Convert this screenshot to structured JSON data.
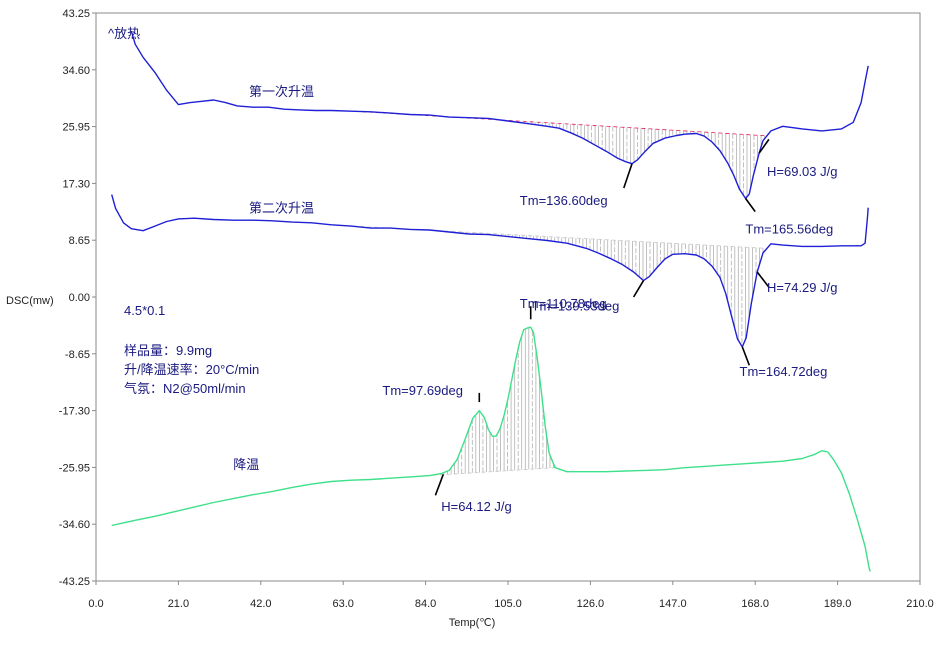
{
  "chart_data": {
    "type": "line",
    "xlabel": "Temp(℃)",
    "ylabel": "DSC(mw)",
    "xlim": [
      0.0,
      210.0
    ],
    "ylim": [
      -43.25,
      43.25
    ],
    "xticks": [
      "0.0",
      "21.0",
      "42.0",
      "63.0",
      "84.0",
      "105.0",
      "126.0",
      "147.0",
      "168.0",
      "189.0",
      "210.0"
    ],
    "yticks": [
      "43.25",
      "34.60",
      "25.95",
      "17.30",
      "8.65",
      "0.00",
      "-8.65",
      "-17.30",
      "-25.95",
      "-34.60",
      "-43.25"
    ],
    "grid": false,
    "colors": {
      "heating": "#1f1fd6",
      "cooling": "#3ee08a",
      "annotation_text": "#1a1a80",
      "hatch": "#b0b0b0",
      "baseline_dash": "#e0205a"
    },
    "exo_label": "^放热",
    "notes": [
      "4.5*0.1",
      "样品量：9.9mg",
      "升/降温速率：20°C/min",
      "气氛：N2@50ml/min"
    ],
    "series": [
      {
        "name": "第一次升温",
        "color": "#1f1fd6",
        "points": [
          [
            9,
            40.5
          ],
          [
            10,
            38.5
          ],
          [
            12,
            36.5
          ],
          [
            15,
            34.2
          ],
          [
            18,
            31.5
          ],
          [
            21,
            29.3
          ],
          [
            24,
            29.6
          ],
          [
            27,
            29.8
          ],
          [
            30,
            30.0
          ],
          [
            33,
            29.6
          ],
          [
            36,
            29.1
          ],
          [
            40,
            28.9
          ],
          [
            44,
            28.9
          ],
          [
            48,
            28.6
          ],
          [
            52,
            28.5
          ],
          [
            56,
            28.4
          ],
          [
            60,
            28.4
          ],
          [
            65,
            28.3
          ],
          [
            70,
            28.2
          ],
          [
            75,
            28.0
          ],
          [
            80,
            27.8
          ],
          [
            85,
            27.7
          ],
          [
            90,
            27.4
          ],
          [
            95,
            27.3
          ],
          [
            100,
            27.2
          ],
          [
            105,
            26.8
          ],
          [
            110,
            26.4
          ],
          [
            115,
            26.0
          ],
          [
            118,
            25.7
          ],
          [
            121,
            25.0
          ],
          [
            124,
            24.2
          ],
          [
            127,
            23.2
          ],
          [
            130,
            22.2
          ],
          [
            133,
            21.1
          ],
          [
            135,
            20.6
          ],
          [
            136.6,
            20.3
          ],
          [
            138,
            20.9
          ],
          [
            140,
            22.2
          ],
          [
            142,
            23.4
          ],
          [
            145,
            24.2
          ],
          [
            148,
            24.6
          ],
          [
            150,
            24.8
          ],
          [
            153,
            24.9
          ],
          [
            155,
            24.5
          ],
          [
            157,
            23.6
          ],
          [
            159,
            22.3
          ],
          [
            161,
            20.4
          ],
          [
            162.5,
            18.6
          ],
          [
            164,
            16.4
          ],
          [
            165.56,
            15.0
          ],
          [
            166.5,
            15.7
          ],
          [
            167.5,
            18.4
          ],
          [
            169,
            21.9
          ],
          [
            170,
            23.8
          ],
          [
            172,
            25.3
          ],
          [
            175,
            26.0
          ],
          [
            180,
            25.6
          ],
          [
            185,
            25.3
          ],
          [
            190,
            25.6
          ],
          [
            193,
            26.6
          ],
          [
            195,
            29.6
          ],
          [
            196,
            32.8
          ],
          [
            196.8,
            35.2
          ]
        ]
      },
      {
        "name": "第二次升温",
        "color": "#1f1fd6",
        "points": [
          [
            4,
            15.6
          ],
          [
            5,
            13.5
          ],
          [
            7,
            11.3
          ],
          [
            9,
            10.4
          ],
          [
            12,
            10.1
          ],
          [
            15,
            10.8
          ],
          [
            18,
            11.5
          ],
          [
            21,
            11.9
          ],
          [
            25,
            12.0
          ],
          [
            30,
            11.8
          ],
          [
            35,
            11.7
          ],
          [
            40,
            11.7
          ],
          [
            45,
            11.6
          ],
          [
            50,
            11.4
          ],
          [
            55,
            11.3
          ],
          [
            60,
            11.0
          ],
          [
            65,
            10.8
          ],
          [
            70,
            10.5
          ],
          [
            75,
            10.5
          ],
          [
            80,
            10.3
          ],
          [
            85,
            10.2
          ],
          [
            90,
            9.9
          ],
          [
            95,
            9.6
          ],
          [
            100,
            9.5
          ],
          [
            105,
            9.2
          ],
          [
            110,
            8.9
          ],
          [
            115,
            8.6
          ],
          [
            120,
            8.2
          ],
          [
            125,
            7.4
          ],
          [
            128,
            6.7
          ],
          [
            131,
            5.9
          ],
          [
            134,
            5.0
          ],
          [
            137,
            3.8
          ],
          [
            139.53,
            2.5
          ],
          [
            141,
            3.1
          ],
          [
            143,
            4.5
          ],
          [
            145,
            5.8
          ],
          [
            147,
            6.5
          ],
          [
            150,
            6.6
          ],
          [
            153,
            6.4
          ],
          [
            155,
            5.8
          ],
          [
            157,
            4.7
          ],
          [
            159,
            3.0
          ],
          [
            160.5,
            0.5
          ],
          [
            162,
            -3.0
          ],
          [
            163.5,
            -6.4
          ],
          [
            164.72,
            -7.6
          ],
          [
            165.7,
            -6.2
          ],
          [
            167,
            -1.0
          ],
          [
            168.5,
            3.8
          ],
          [
            170,
            6.7
          ],
          [
            172,
            8.1
          ],
          [
            175,
            7.9
          ],
          [
            180,
            7.7
          ],
          [
            185,
            7.7
          ],
          [
            190,
            7.8
          ],
          [
            195,
            7.8
          ],
          [
            196,
            8.2
          ],
          [
            196.6,
            12.0
          ],
          [
            196.8,
            13.6
          ]
        ]
      },
      {
        "name": "降温",
        "color": "#3ee08a",
        "points": [
          [
            4,
            -34.8
          ],
          [
            10,
            -34.0
          ],
          [
            15,
            -33.4
          ],
          [
            20,
            -32.7
          ],
          [
            25,
            -32.0
          ],
          [
            30,
            -31.3
          ],
          [
            35,
            -30.7
          ],
          [
            40,
            -30.1
          ],
          [
            45,
            -29.6
          ],
          [
            50,
            -29.0
          ],
          [
            55,
            -28.5
          ],
          [
            60,
            -28.1
          ],
          [
            65,
            -27.9
          ],
          [
            70,
            -27.8
          ],
          [
            75,
            -27.6
          ],
          [
            80,
            -27.4
          ],
          [
            85,
            -27.2
          ],
          [
            88,
            -26.9
          ],
          [
            90,
            -26.4
          ],
          [
            92,
            -24.8
          ],
          [
            94,
            -21.8
          ],
          [
            96,
            -18.5
          ],
          [
            97.69,
            -17.3
          ],
          [
            99,
            -18.4
          ],
          [
            100,
            -20.2
          ],
          [
            101,
            -21.2
          ],
          [
            102,
            -21.2
          ],
          [
            103,
            -20.0
          ],
          [
            104,
            -18.0
          ],
          [
            105,
            -15.5
          ],
          [
            106,
            -12.5
          ],
          [
            107,
            -9.5
          ],
          [
            108,
            -6.8
          ],
          [
            109,
            -5.0
          ],
          [
            110,
            -4.7
          ],
          [
            110.78,
            -4.6
          ],
          [
            111.5,
            -5.4
          ],
          [
            112.5,
            -9.5
          ],
          [
            113.5,
            -14.5
          ],
          [
            114.5,
            -19.8
          ],
          [
            115.5,
            -23.8
          ],
          [
            117,
            -26.0
          ],
          [
            120,
            -26.6
          ],
          [
            125,
            -26.6
          ],
          [
            130,
            -26.6
          ],
          [
            135,
            -26.5
          ],
          [
            140,
            -26.4
          ],
          [
            145,
            -26.3
          ],
          [
            150,
            -26.0
          ],
          [
            155,
            -25.8
          ],
          [
            160,
            -25.6
          ],
          [
            165,
            -25.4
          ],
          [
            170,
            -25.2
          ],
          [
            175,
            -25.0
          ],
          [
            180,
            -24.6
          ],
          [
            183,
            -24.0
          ],
          [
            185,
            -23.4
          ],
          [
            186.5,
            -23.6
          ],
          [
            188,
            -24.8
          ],
          [
            190,
            -26.8
          ],
          [
            192,
            -30.0
          ],
          [
            194,
            -33.8
          ],
          [
            196,
            -38.0
          ],
          [
            197,
            -41.2
          ],
          [
            197.3,
            -41.8
          ]
        ]
      }
    ],
    "curve_labels": [
      {
        "text": "第一次升温",
        "x": 39,
        "y": 31.4
      },
      {
        "text": "第二次升温",
        "x": 39,
        "y": 13.6
      },
      {
        "text": "降温",
        "x": 35,
        "y": -25.4
      }
    ],
    "annotations": [
      {
        "text": "Tm=136.60deg",
        "x": 136.6,
        "y": 20.3,
        "lx": 134.5,
        "ly": 16.6,
        "tx": 108.0,
        "ty": 14.8
      },
      {
        "text": "H=69.03 J/g",
        "x": 169.0,
        "y": 21.9,
        "lx": 171.5,
        "ly": 24.0,
        "tx": 171.0,
        "ty": 19.2
      },
      {
        "text": "Tm=165.56deg",
        "x": 165.56,
        "y": 15.0,
        "lx": 168.0,
        "ly": 13.0,
        "tx": 165.5,
        "ty": 10.4
      },
      {
        "text": "Tm=139.53deg",
        "x": 139.53,
        "y": 2.5,
        "lx": 137.0,
        "ly": 0.0,
        "tx": 111.0,
        "ty": -1.3
      },
      {
        "text": "H=74.29 J/g",
        "x": 168.5,
        "y": 3.8,
        "lx": 171.5,
        "ly": 1.5,
        "tx": 171.0,
        "ty": 1.5
      },
      {
        "text": "Tm=164.72deg",
        "x": 164.72,
        "y": -7.6,
        "lx": 166.5,
        "ly": -10.4,
        "tx": 164.0,
        "ty": -11.3
      },
      {
        "text": "Tm=97.69deg",
        "x": 97.69,
        "y": -16.0,
        "lx": 97.69,
        "ly": -14.6,
        "tx": 73.0,
        "ty": -14.2
      },
      {
        "text": "Tm=110.78deg",
        "x": 110.78,
        "y": -3.4,
        "lx": 110.78,
        "ly": -1.4,
        "tx": 108.0,
        "ty": -0.9
      },
      {
        "text": "H=64.12 J/g",
        "x": 88.5,
        "y": -27.0,
        "lx": 86.5,
        "ly": -30.2,
        "tx": 88.0,
        "ty": -31.8
      }
    ],
    "hatched_regions": [
      {
        "series": 0,
        "from": 66,
        "to": 171
      },
      {
        "series": 1,
        "from": 62,
        "to": 171
      },
      {
        "series": 2,
        "from": 68,
        "to": 117
      }
    ]
  }
}
